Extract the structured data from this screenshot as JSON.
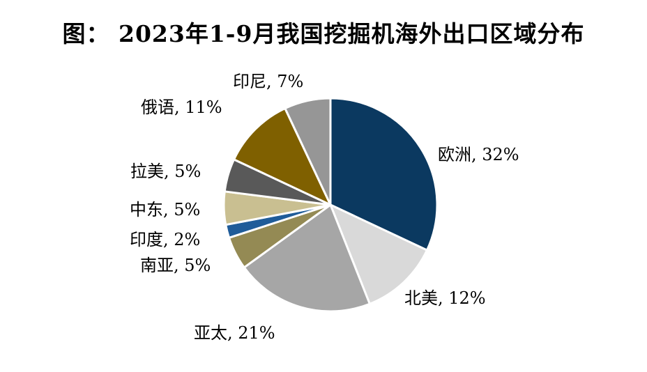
{
  "page": {
    "title": "图： 2023年1-9月我国挖掘机海外出口区域分布"
  },
  "chart_data": {
    "type": "pie",
    "title": "图： 2023年1-9月我国挖掘机海外出口区域分布",
    "start_angle_deg": 0,
    "direction": "clockwise",
    "slices": [
      {
        "label": "欧洲, 32%",
        "name": "欧洲",
        "value": 32,
        "color": "#0b3960"
      },
      {
        "label": "北美, 12%",
        "name": "北美",
        "value": 12,
        "color": "#d9d9d9"
      },
      {
        "label": "亚太, 21%",
        "name": "亚太",
        "value": 21,
        "color": "#a6a6a6"
      },
      {
        "label": "南亚, 5%",
        "name": "南亚",
        "value": 5,
        "color": "#948a54"
      },
      {
        "label": "印度, 2%",
        "name": "印度",
        "value": 2,
        "color": "#1f5c99"
      },
      {
        "label": "中东, 5%",
        "name": "中东",
        "value": 5,
        "color": "#c9bf91"
      },
      {
        "label": "拉美, 5%",
        "name": "拉美",
        "value": 5,
        "color": "#595959"
      },
      {
        "label": "俄语, 11%",
        "name": "俄语",
        "value": 11,
        "color": "#7f6000"
      },
      {
        "label": "印尼, 7%",
        "name": "印尼",
        "value": 7,
        "color": "#969696"
      }
    ]
  }
}
